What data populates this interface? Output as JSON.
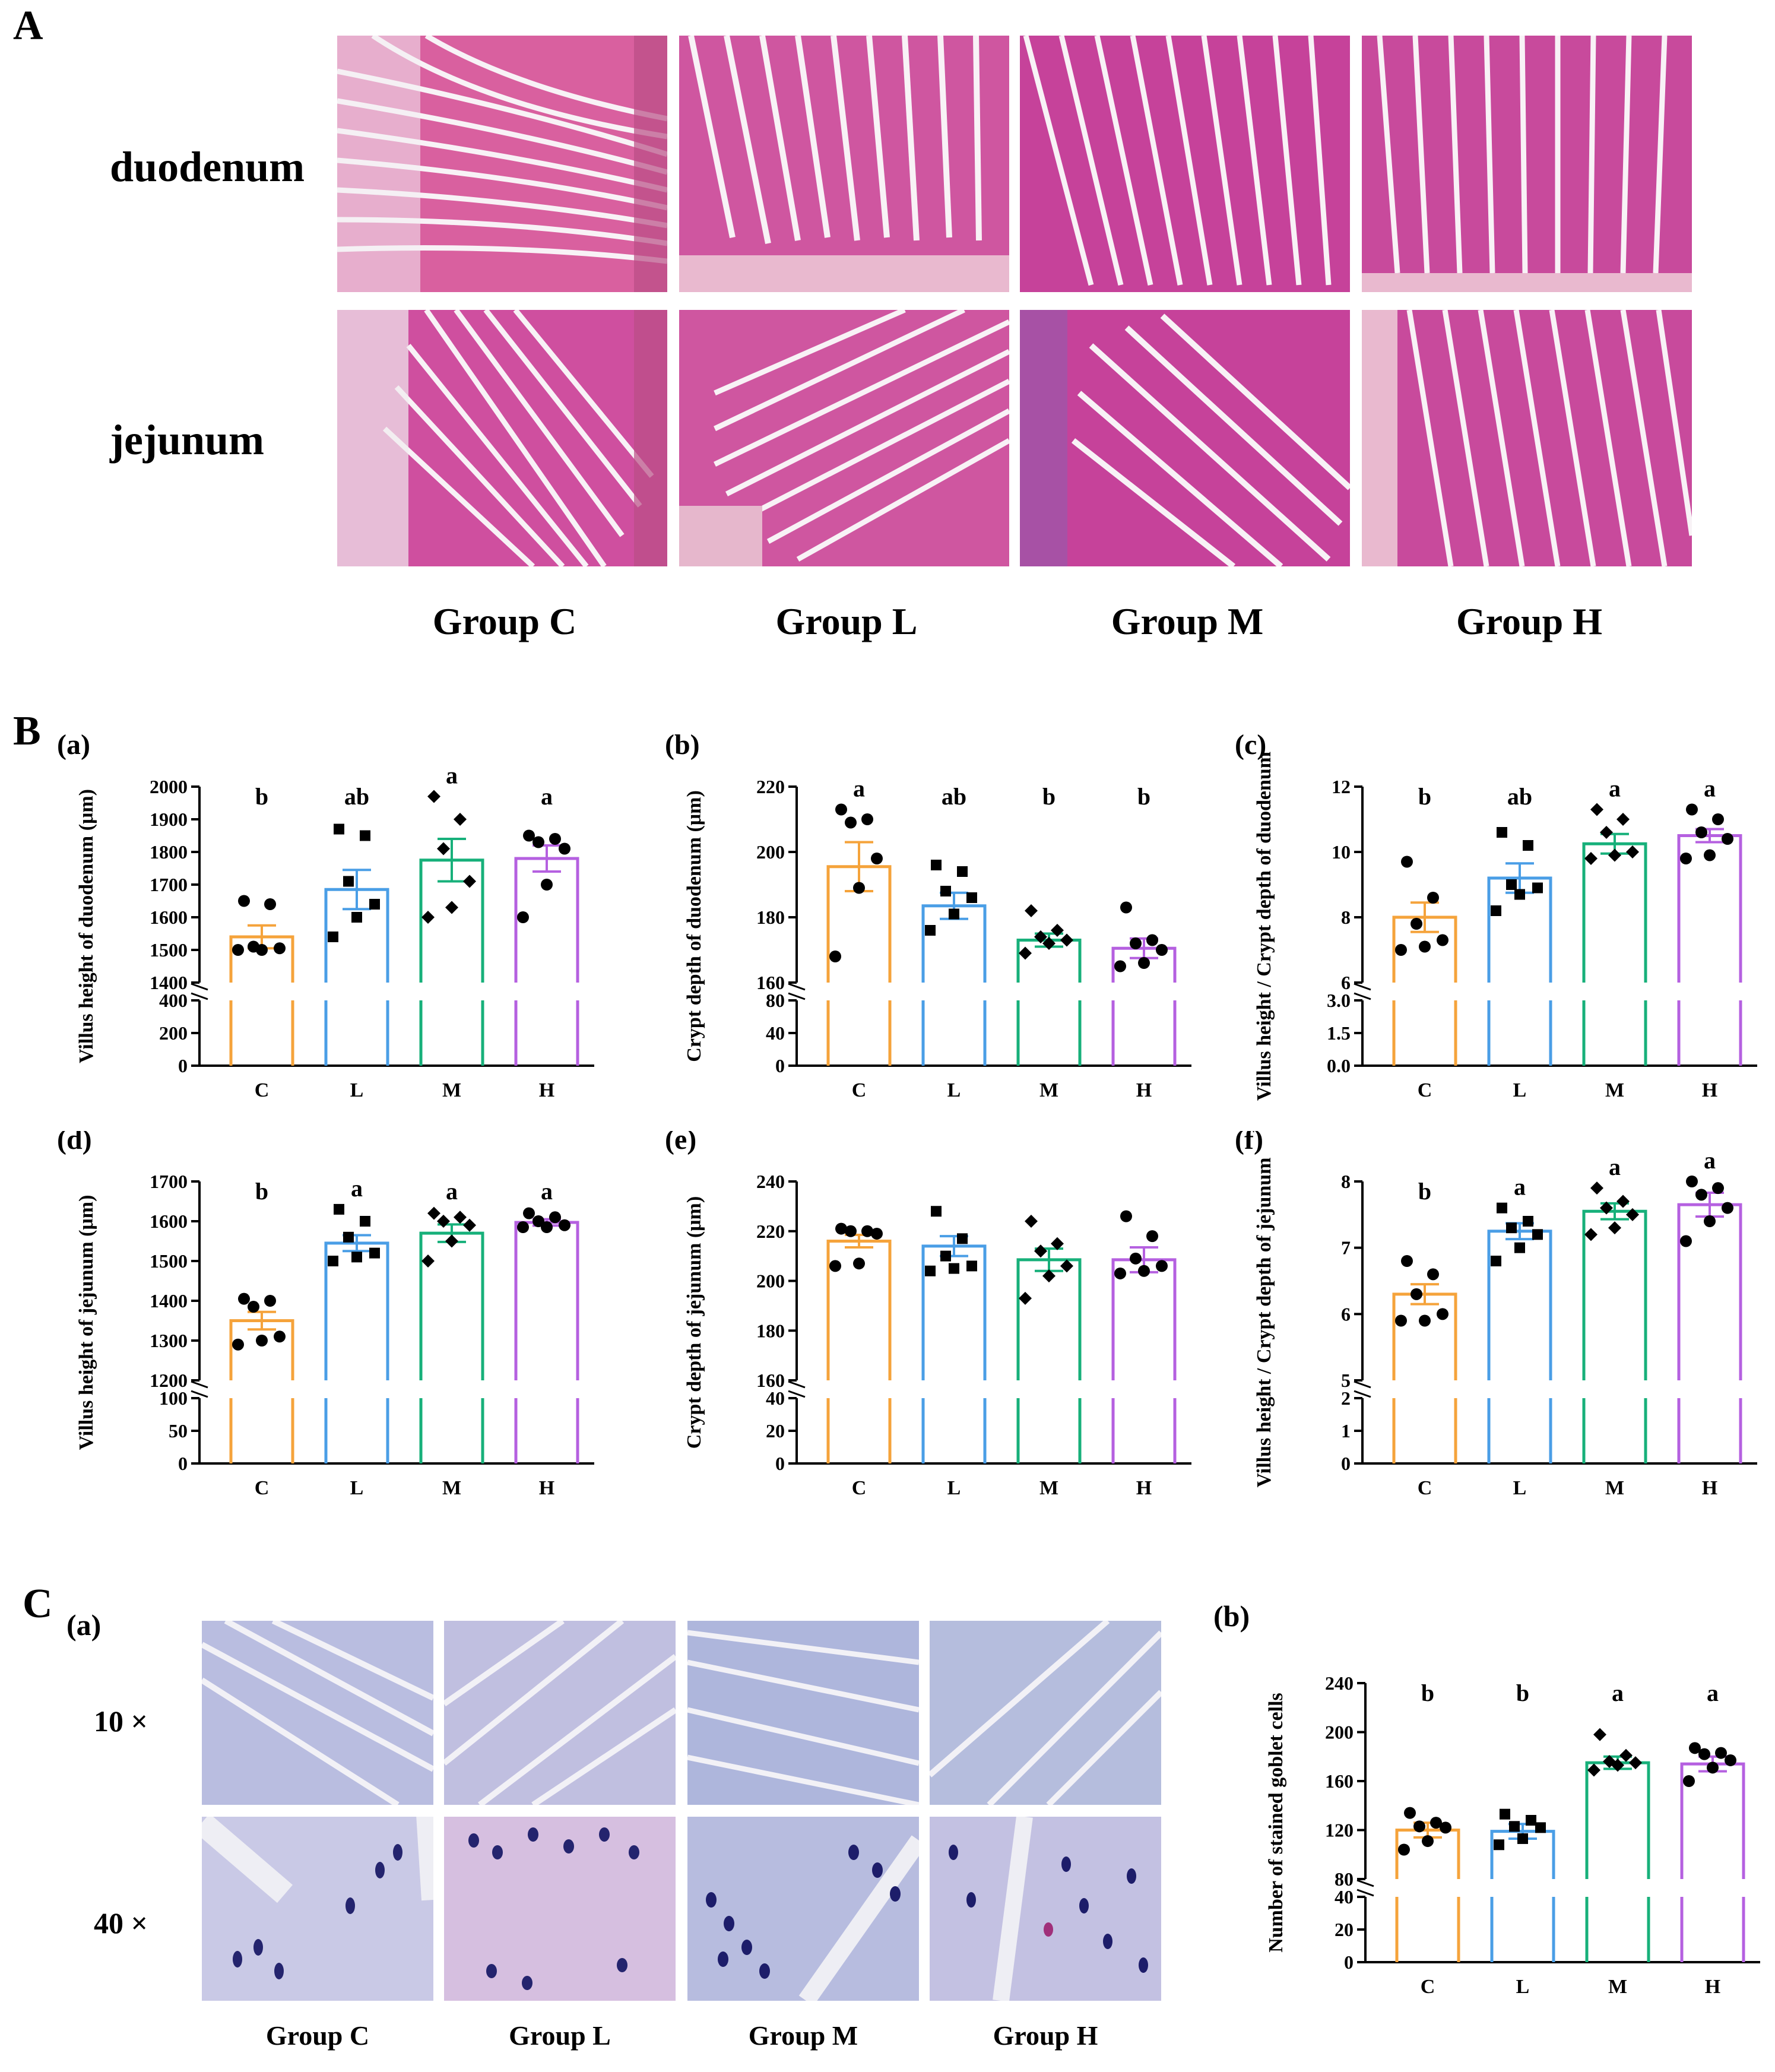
{
  "panelA": {
    "letter": "A",
    "rows": [
      "duodenum",
      "jejunum"
    ],
    "groups": [
      "Group C",
      "Group L",
      "Group M",
      "Group H"
    ]
  },
  "panelB": {
    "letter": "B"
  },
  "panelC": {
    "letter": "C",
    "sub_a": "(a)",
    "sub_b": "(b)",
    "magnifications": [
      "10 ×",
      "40 ×"
    ],
    "groups": [
      "Group C",
      "Group L",
      "Group M",
      "Group H"
    ]
  },
  "colors": {
    "C": "#f5a33b",
    "L": "#4a9ee6",
    "M": "#17b07a",
    "H": "#b560e0",
    "he_stain": "#c2409a",
    "pas_stain": "#9aa4d6"
  },
  "chart_data": [
    {
      "id": "Ba",
      "panel": "(a)",
      "type": "bar",
      "categories": [
        "C",
        "L",
        "M",
        "H"
      ],
      "values": [
        1540,
        1685,
        1775,
        1780
      ],
      "sem": [
        35,
        60,
        65,
        40
      ],
      "points": [
        [
          1650,
          1640,
          1510,
          1505,
          1500,
          1500
        ],
        [
          1870,
          1850,
          1710,
          1640,
          1600,
          1540
        ],
        [
          1970,
          1900,
          1810,
          1710,
          1630,
          1600
        ],
        [
          1850,
          1840,
          1830,
          1810,
          1700,
          1600
        ]
      ],
      "letters": [
        "b",
        "ab",
        "a",
        "a"
      ],
      "ylabel": "Villus height of duodenum (μm)",
      "upper_range": [
        1400,
        2000
      ],
      "upper_ticks": [
        1400,
        1500,
        1600,
        1700,
        1800,
        1900,
        2000
      ],
      "lower_range": [
        0,
        400
      ],
      "lower_ticks": [
        0,
        200,
        400
      ],
      "marker": [
        "circle",
        "square",
        "diamond",
        "circle"
      ]
    },
    {
      "id": "Bb",
      "panel": "(b)",
      "type": "bar",
      "categories": [
        "C",
        "L",
        "M",
        "H"
      ],
      "values": [
        195.5,
        183.5,
        173,
        170.5
      ],
      "sem": [
        7.5,
        4,
        2,
        3
      ],
      "points": [
        [
          213,
          210,
          209,
          198,
          189,
          168
        ],
        [
          196,
          194,
          188,
          186,
          181,
          176
        ],
        [
          182,
          176,
          174,
          173,
          172,
          169
        ],
        [
          183,
          173,
          172,
          170,
          166,
          165
        ]
      ],
      "letters": [
        "a",
        "ab",
        "b",
        "b"
      ],
      "ylabel": "Crypt depth of duodenum (μm)",
      "upper_range": [
        160,
        220
      ],
      "upper_ticks": [
        160,
        180,
        200,
        220
      ],
      "lower_range": [
        0,
        80
      ],
      "lower_ticks": [
        0,
        40,
        80
      ],
      "marker": [
        "circle",
        "square",
        "diamond",
        "circle"
      ]
    },
    {
      "id": "Bc",
      "panel": "(c)",
      "type": "bar",
      "categories": [
        "C",
        "L",
        "M",
        "H"
      ],
      "values": [
        8,
        9.2,
        10.25,
        10.5
      ],
      "sem": [
        0.45,
        0.45,
        0.3,
        0.2
      ],
      "points": [
        [
          9.7,
          8.6,
          7.8,
          7.3,
          7.1,
          7.0
        ],
        [
          10.6,
          10.2,
          9.0,
          8.9,
          8.7,
          8.2
        ],
        [
          11.3,
          11.0,
          10.6,
          10.0,
          9.9,
          9.8
        ],
        [
          11.3,
          11.0,
          10.6,
          10.4,
          9.9,
          9.8
        ]
      ],
      "letters": [
        "b",
        "ab",
        "a",
        "a"
      ],
      "ylabel": "Villus height / Crypt depth of duodenum",
      "upper_range": [
        6,
        12
      ],
      "upper_ticks": [
        6,
        8,
        10,
        12
      ],
      "lower_range": [
        0,
        3
      ],
      "lower_ticks": [
        0.0,
        1.5,
        3.0
      ],
      "marker": [
        "circle",
        "square",
        "diamond",
        "circle"
      ]
    },
    {
      "id": "Bd",
      "panel": "(d)",
      "type": "bar",
      "categories": [
        "C",
        "L",
        "M",
        "H"
      ],
      "values": [
        1350,
        1545,
        1570,
        1597
      ],
      "sem": [
        22,
        20,
        22,
        8
      ],
      "points": [
        [
          1405,
          1400,
          1385,
          1310,
          1300,
          1290
        ],
        [
          1630,
          1600,
          1560,
          1520,
          1510,
          1500
        ],
        [
          1620,
          1610,
          1600,
          1590,
          1550,
          1500
        ],
        [
          1620,
          1610,
          1600,
          1590,
          1585,
          1585
        ]
      ],
      "letters": [
        "b",
        "a",
        "a",
        "a"
      ],
      "ylabel": "Villus height of jejunum (μm)",
      "upper_range": [
        1200,
        1700
      ],
      "upper_ticks": [
        1200,
        1300,
        1400,
        1500,
        1600,
        1700
      ],
      "lower_range": [
        0,
        100
      ],
      "lower_ticks": [
        0,
        50,
        100
      ],
      "marker": [
        "circle",
        "square",
        "diamond",
        "circle"
      ]
    },
    {
      "id": "Be",
      "panel": "(e)",
      "type": "bar",
      "categories": [
        "C",
        "L",
        "M",
        "H"
      ],
      "values": [
        216,
        214,
        208.5,
        208.5
      ],
      "sem": [
        2.5,
        4,
        4.5,
        5
      ],
      "points": [
        [
          221,
          220,
          220,
          219,
          207,
          206
        ],
        [
          228,
          217,
          210,
          206,
          205,
          204
        ],
        [
          224,
          215,
          212,
          206,
          202,
          193
        ],
        [
          226,
          218,
          209,
          206,
          204,
          203
        ]
      ],
      "letters": [
        "",
        "",
        "",
        ""
      ],
      "ylabel": "Crypt depth of jejunum (μm)",
      "upper_range": [
        160,
        240
      ],
      "upper_ticks": [
        160,
        180,
        200,
        220,
        240
      ],
      "lower_range": [
        0,
        40
      ],
      "lower_ticks": [
        0,
        20,
        40
      ],
      "marker": [
        "circle",
        "square",
        "diamond",
        "circle"
      ]
    },
    {
      "id": "Bf",
      "panel": "(f)",
      "type": "bar",
      "categories": [
        "C",
        "L",
        "M",
        "H"
      ],
      "values": [
        6.3,
        7.25,
        7.55,
        7.65
      ],
      "sem": [
        0.15,
        0.12,
        0.12,
        0.18
      ],
      "points": [
        [
          6.8,
          6.6,
          6.3,
          6.0,
          5.9,
          5.9
        ],
        [
          7.6,
          7.4,
          7.3,
          7.2,
          7.0,
          6.8
        ],
        [
          7.9,
          7.7,
          7.6,
          7.5,
          7.3,
          7.2
        ],
        [
          8.0,
          7.9,
          7.8,
          7.6,
          7.4,
          7.1
        ]
      ],
      "letters": [
        "b",
        "a",
        "a",
        "a"
      ],
      "ylabel": "Villus height / Crypt depth of jejunum",
      "upper_range": [
        5,
        8
      ],
      "upper_ticks": [
        5,
        6,
        7,
        8
      ],
      "lower_range": [
        0,
        2
      ],
      "lower_ticks": [
        0,
        1,
        2
      ],
      "marker": [
        "circle",
        "square",
        "diamond",
        "circle"
      ]
    },
    {
      "id": "Cb",
      "panel": "(b)",
      "type": "bar",
      "categories": [
        "C",
        "L",
        "M",
        "H"
      ],
      "values": [
        120,
        119,
        175,
        174
      ],
      "sem": [
        6,
        6,
        5,
        6
      ],
      "points": [
        [
          134,
          126,
          123,
          122,
          111,
          104
        ],
        [
          133,
          128,
          123,
          122,
          113,
          108
        ],
        [
          198,
          181,
          176,
          175,
          173,
          169
        ],
        [
          187,
          183,
          182,
          177,
          171,
          160
        ]
      ],
      "letters": [
        "b",
        "b",
        "a",
        "a"
      ],
      "ylabel": "Number of stained goblet cells",
      "upper_range": [
        80,
        240
      ],
      "upper_ticks": [
        80,
        120,
        160,
        200,
        240
      ],
      "lower_range": [
        0,
        40
      ],
      "lower_ticks": [
        0,
        20,
        40
      ],
      "marker": [
        "circle",
        "square",
        "diamond",
        "circle"
      ]
    }
  ]
}
